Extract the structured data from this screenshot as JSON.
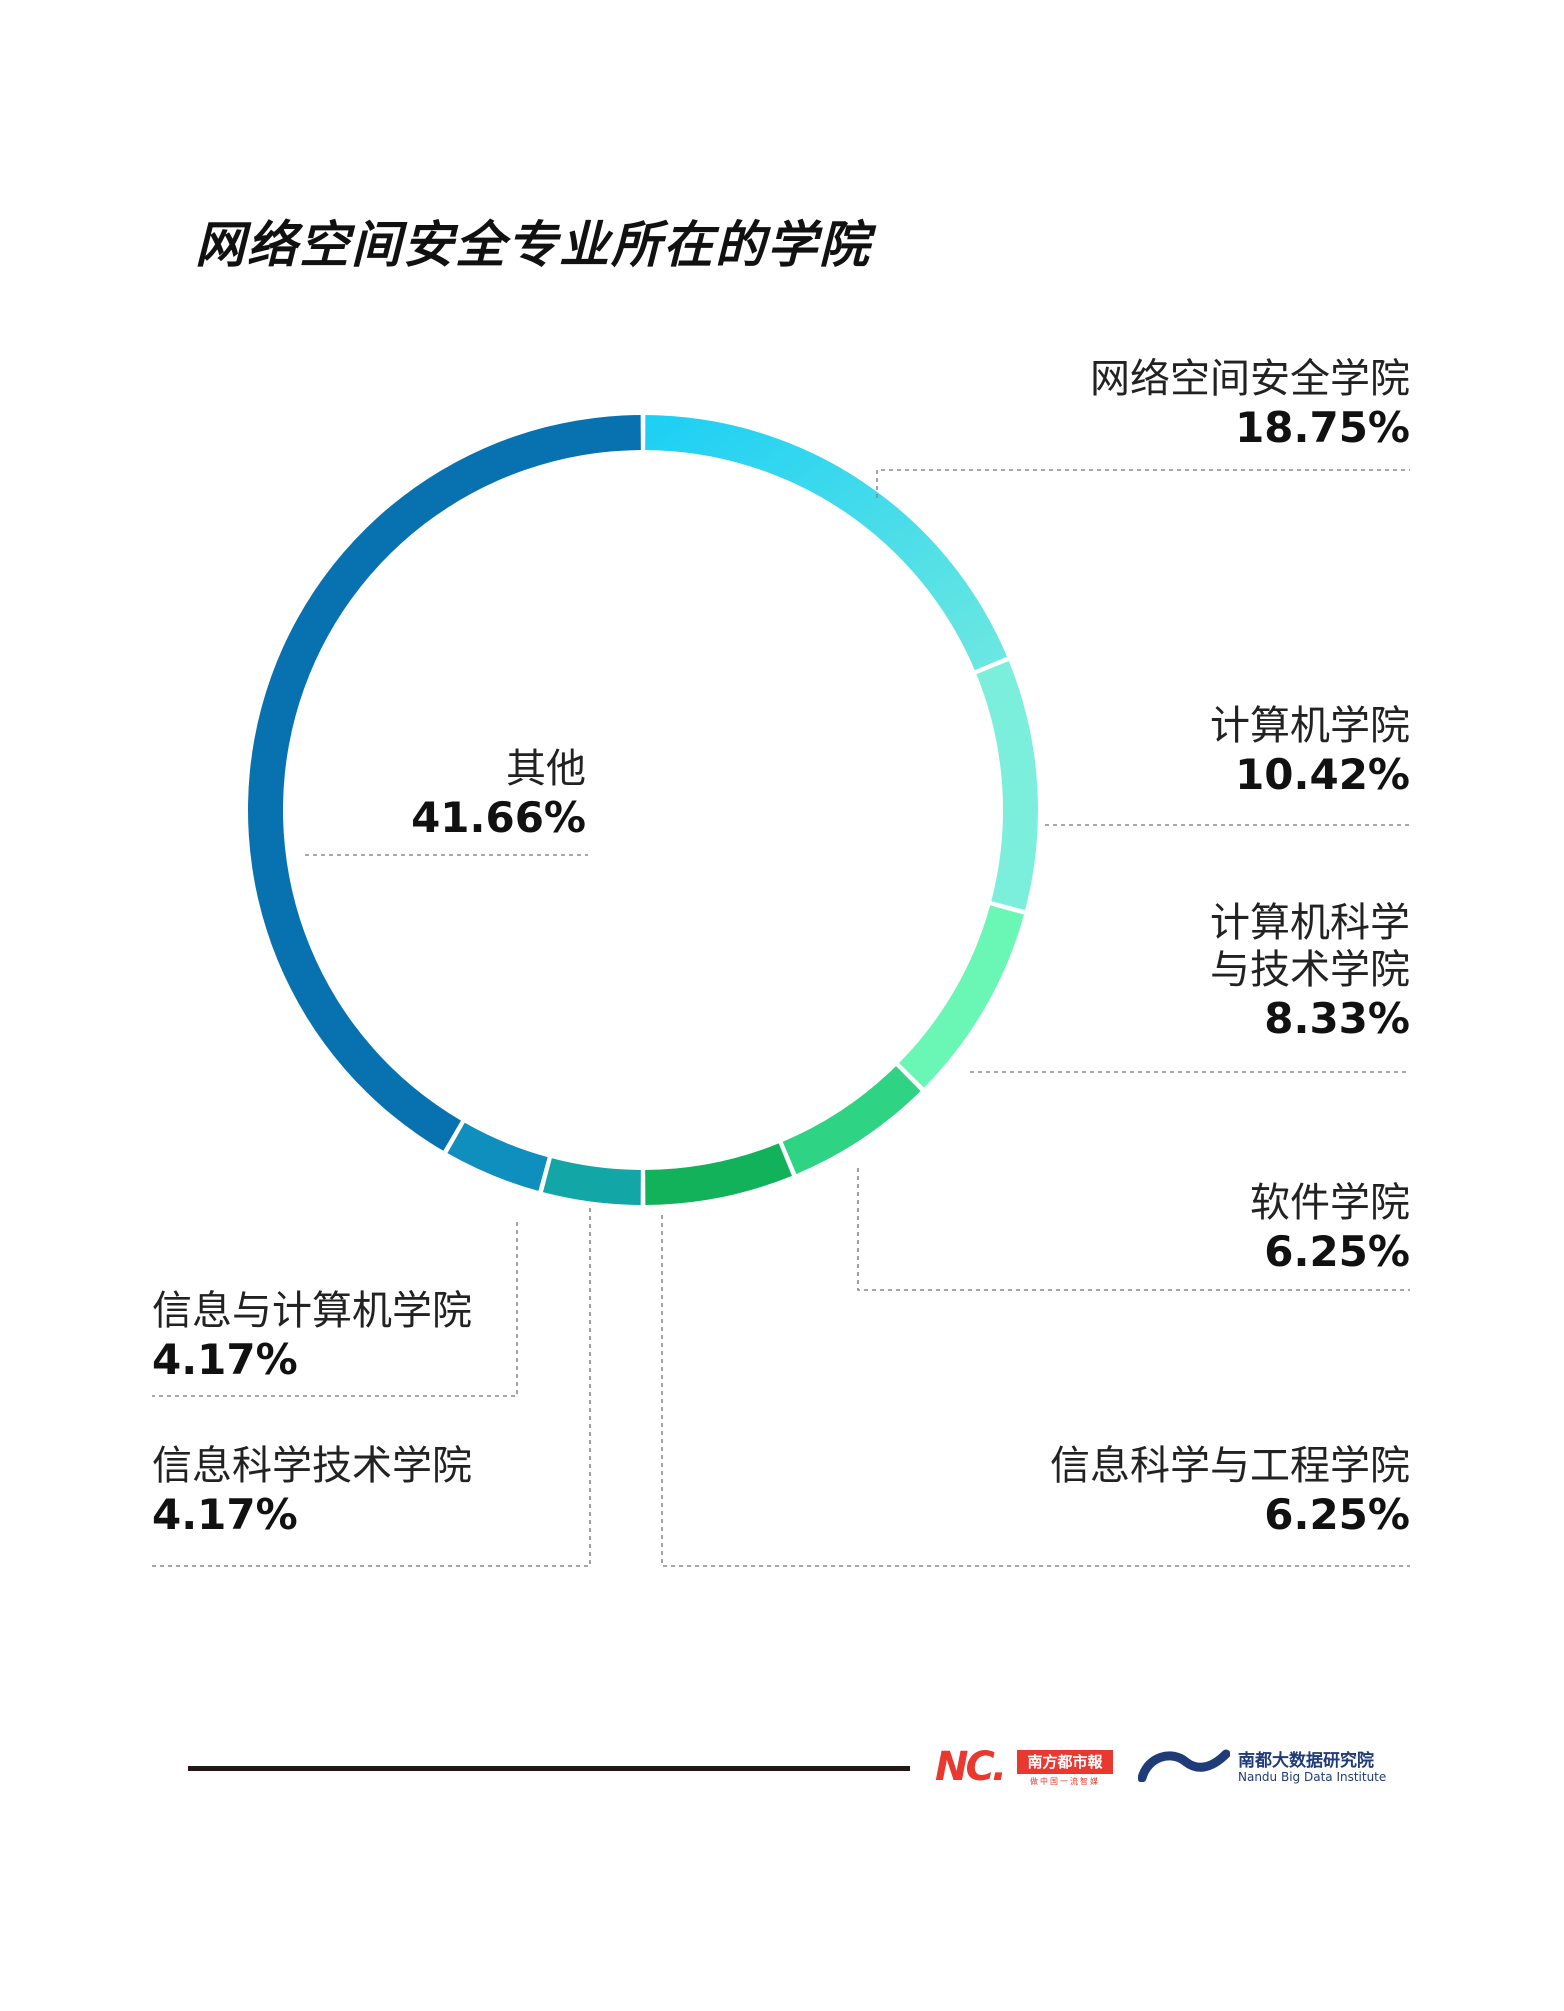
{
  "chart_data": {
    "type": "pie",
    "title": "网络空间安全专业所在的学院",
    "slices": [
      {
        "label": "网络空间安全学院",
        "value": 18.75,
        "value_label": "18.75%",
        "color": "#1bcff5",
        "color_end": "#6ee8e0"
      },
      {
        "label": "计算机学院",
        "value": 10.42,
        "value_label": "10.42%",
        "color": "#7cefdc",
        "color_end": "#7cefdc"
      },
      {
        "label": "计算机科学与技术学院",
        "label_lines": [
          "计算机科学",
          "与技术学院"
        ],
        "value": 8.33,
        "value_label": "8.33%",
        "color": "#6af7b5",
        "color_end": "#6af7b5"
      },
      {
        "label": "软件学院",
        "value": 6.25,
        "value_label": "6.25%",
        "color": "#2ed383",
        "color_end": "#2ed383"
      },
      {
        "label": "信息科学与工程学院",
        "value": 6.25,
        "value_label": "6.25%",
        "color": "#12b25a",
        "color_end": "#12b25a"
      },
      {
        "label": "信息科学技术学院",
        "value": 4.17,
        "value_label": "4.17%",
        "color": "#12a6a6",
        "color_end": "#12a6a6"
      },
      {
        "label": "信息与计算机学院",
        "value": 4.17,
        "value_label": "4.17%",
        "color": "#0f8fbd",
        "color_end": "#0f8fbd"
      },
      {
        "label": "其他",
        "value": 41.66,
        "value_label": "41.66%",
        "color": "#0872b0",
        "color_end": "#0872b0"
      }
    ]
  },
  "footer": {
    "logo_nd_mark": "NC.",
    "logo_nd_name": "南方都市報",
    "logo_nd_sub": "做中国一流智媒",
    "logo_inst_cn": "南都大数据研究院",
    "logo_inst_en": "Nandu Big Data Institute"
  }
}
